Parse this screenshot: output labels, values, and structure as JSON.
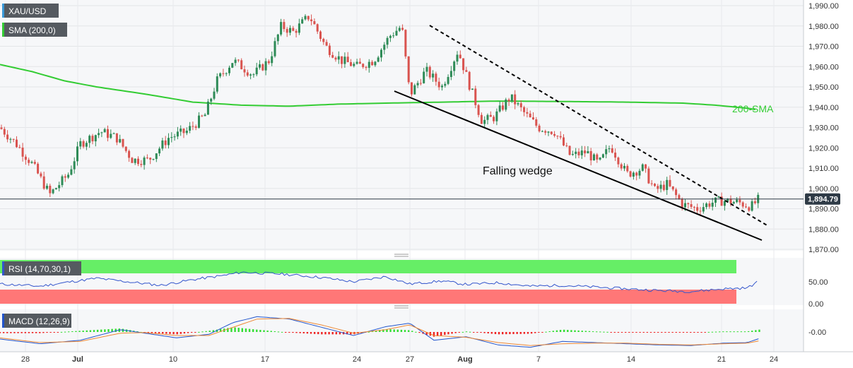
{
  "chart_data": {
    "type": "candlestick",
    "symbol": "XAU/USD",
    "indicator_label": "SMA (200,0)",
    "annotations": {
      "sma": "200-SMA",
      "pattern": "Falling wedge"
    },
    "price_axis": {
      "ylim": [
        1867,
        1992
      ],
      "ticks": [
        1990,
        1980,
        1970,
        1960,
        1950,
        1940,
        1930,
        1920,
        1910,
        1900,
        1890,
        1880,
        1870
      ],
      "tick_labels": [
        "1,990.00",
        "1,980.00",
        "1,970.00",
        "1,960.00",
        "1,950.00",
        "1,940.00",
        "1,930.00",
        "1,920.00",
        "1,910.00",
        "1,900.00",
        "1,890.00",
        "1,880.00",
        "1,870.00"
      ]
    },
    "last_price": 1894.79,
    "last_price_label": "1,894.79",
    "x_axis": {
      "tick_labels": [
        "28",
        "Jul",
        "10",
        "17",
        "24",
        "27",
        "Aug",
        "7",
        "14",
        "21",
        "24"
      ]
    },
    "sma200": [
      [
        0,
        1961.0
      ],
      [
        0.04,
        1957.5
      ],
      [
        0.08,
        1953.0
      ],
      [
        0.12,
        1950.0
      ],
      [
        0.18,
        1946.5
      ],
      [
        0.24,
        1942.5
      ],
      [
        0.3,
        1941.0
      ],
      [
        0.36,
        1940.5
      ],
      [
        0.42,
        1941.5
      ],
      [
        0.48,
        1942.0
      ],
      [
        0.55,
        1942.5
      ],
      [
        0.62,
        1943.0
      ],
      [
        0.7,
        1942.8
      ],
      [
        0.78,
        1942.5
      ],
      [
        0.85,
        1942.0
      ],
      [
        0.89,
        1941.0
      ],
      [
        0.93,
        1939.5
      ],
      [
        0.945,
        1938.5
      ]
    ],
    "candles_anchor": [
      [
        0.0,
        1930
      ],
      [
        0.02,
        1922
      ],
      [
        0.04,
        1912
      ],
      [
        0.062,
        1897
      ],
      [
        0.085,
        1907
      ],
      [
        0.1,
        1922
      ],
      [
        0.125,
        1928
      ],
      [
        0.145,
        1925
      ],
      [
        0.165,
        1914
      ],
      [
        0.185,
        1914
      ],
      [
        0.21,
        1925
      ],
      [
        0.232,
        1928
      ],
      [
        0.255,
        1936
      ],
      [
        0.27,
        1953
      ],
      [
        0.29,
        1963
      ],
      [
        0.315,
        1956
      ],
      [
        0.335,
        1963
      ],
      [
        0.35,
        1980
      ],
      [
        0.365,
        1977
      ],
      [
        0.385,
        1985
      ],
      [
        0.405,
        1970
      ],
      [
        0.425,
        1963
      ],
      [
        0.445,
        1960
      ],
      [
        0.465,
        1963
      ],
      [
        0.485,
        1975
      ],
      [
        0.5,
        1980
      ],
      [
        0.51,
        1946
      ],
      [
        0.53,
        1958
      ],
      [
        0.55,
        1950
      ],
      [
        0.57,
        1968
      ],
      [
        0.585,
        1950
      ],
      [
        0.6,
        1933
      ],
      [
        0.615,
        1935
      ],
      [
        0.635,
        1945
      ],
      [
        0.655,
        1936
      ],
      [
        0.67,
        1930
      ],
      [
        0.69,
        1928
      ],
      [
        0.71,
        1916
      ],
      [
        0.73,
        1918
      ],
      [
        0.745,
        1912
      ],
      [
        0.76,
        1921
      ],
      [
        0.78,
        1907
      ],
      [
        0.8,
        1910
      ],
      [
        0.815,
        1899
      ],
      [
        0.83,
        1902
      ],
      [
        0.85,
        1892
      ],
      [
        0.868,
        1890
      ],
      [
        0.885,
        1893
      ],
      [
        0.9,
        1894
      ],
      [
        0.92,
        1893
      ],
      [
        0.935,
        1891
      ],
      [
        0.945,
        1895
      ]
    ],
    "rsi": {
      "label": "RSI (14,70,30,1)",
      "ylim": [
        0,
        100
      ],
      "ticks": [
        50,
        0
      ],
      "tick_labels": [
        "50.00",
        "0.00"
      ],
      "values_anchor": [
        [
          0.0,
          45
        ],
        [
          0.05,
          40
        ],
        [
          0.08,
          48
        ],
        [
          0.12,
          58
        ],
        [
          0.16,
          50
        ],
        [
          0.2,
          42
        ],
        [
          0.24,
          55
        ],
        [
          0.28,
          65
        ],
        [
          0.3,
          72
        ],
        [
          0.35,
          68
        ],
        [
          0.4,
          60
        ],
        [
          0.44,
          50
        ],
        [
          0.48,
          62
        ],
        [
          0.51,
          45
        ],
        [
          0.55,
          52
        ],
        [
          0.58,
          44
        ],
        [
          0.62,
          48
        ],
        [
          0.66,
          40
        ],
        [
          0.7,
          42
        ],
        [
          0.74,
          38
        ],
        [
          0.78,
          34
        ],
        [
          0.82,
          30
        ],
        [
          0.86,
          28
        ],
        [
          0.9,
          34
        ],
        [
          0.93,
          36
        ],
        [
          0.945,
          52
        ]
      ]
    },
    "macd": {
      "label": "MACD (12,26,9)",
      "tick_labels": [
        "-0.00"
      ],
      "macd_anchor": [
        [
          0.0,
          -1.2
        ],
        [
          0.05,
          -2.0
        ],
        [
          0.1,
          -1.4
        ],
        [
          0.15,
          0.4
        ],
        [
          0.18,
          -0.2
        ],
        [
          0.22,
          -1.0
        ],
        [
          0.26,
          -0.4
        ],
        [
          0.29,
          1.6
        ],
        [
          0.32,
          2.6
        ],
        [
          0.36,
          2.2
        ],
        [
          0.4,
          0.8
        ],
        [
          0.44,
          -0.6
        ],
        [
          0.48,
          0.9
        ],
        [
          0.51,
          1.5
        ],
        [
          0.54,
          -1.4
        ],
        [
          0.58,
          -0.8
        ],
        [
          0.62,
          -2.2
        ],
        [
          0.66,
          -2.6
        ],
        [
          0.7,
          -1.6
        ],
        [
          0.74,
          -1.8
        ],
        [
          0.78,
          -2.0
        ],
        [
          0.82,
          -2.2
        ],
        [
          0.86,
          -2.3
        ],
        [
          0.9,
          -1.9
        ],
        [
          0.93,
          -1.8
        ],
        [
          0.945,
          -1.1
        ]
      ],
      "signal_anchor": [
        [
          0.0,
          -1.0
        ],
        [
          0.05,
          -1.8
        ],
        [
          0.1,
          -1.6
        ],
        [
          0.15,
          -0.2
        ],
        [
          0.18,
          -0.1
        ],
        [
          0.22,
          -0.6
        ],
        [
          0.26,
          -0.6
        ],
        [
          0.29,
          0.8
        ],
        [
          0.32,
          2.2
        ],
        [
          0.36,
          2.3
        ],
        [
          0.4,
          1.2
        ],
        [
          0.44,
          -0.2
        ],
        [
          0.48,
          0.4
        ],
        [
          0.51,
          1.2
        ],
        [
          0.54,
          -0.6
        ],
        [
          0.58,
          -0.9
        ],
        [
          0.62,
          -1.8
        ],
        [
          0.66,
          -2.3
        ],
        [
          0.7,
          -2.0
        ],
        [
          0.74,
          -1.9
        ],
        [
          0.78,
          -1.9
        ],
        [
          0.82,
          -2.1
        ],
        [
          0.86,
          -2.2
        ],
        [
          0.9,
          -2.0
        ],
        [
          0.93,
          -1.9
        ],
        [
          0.945,
          -1.5
        ]
      ]
    },
    "colors": {
      "up": "#2e8b57",
      "down": "#d9534f",
      "sma": "#33cc33",
      "rsi_line": "#3355cc",
      "rsi_ob": "#66ee66",
      "rsi_os": "#ff7777",
      "macd_line": "#2255cc",
      "signal_line": "#ee8833",
      "hist_up": "#33dd33",
      "hist_down": "#ee2222",
      "label_bg": "#555a60",
      "price_tag": "#2e3a46"
    }
  }
}
